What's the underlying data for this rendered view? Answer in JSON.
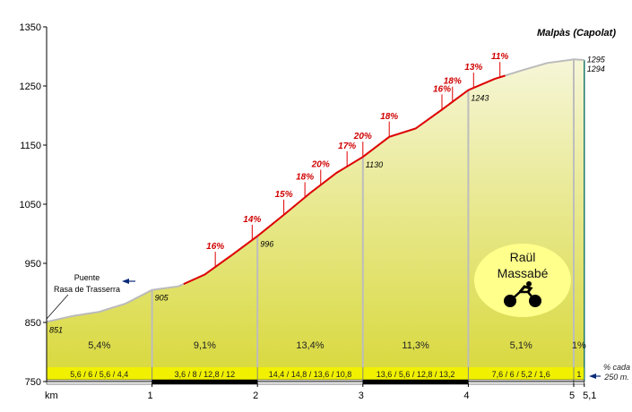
{
  "chart_data": {
    "type": "area",
    "title": "Malpàs (Capolat)",
    "xlabel": "km",
    "ylabel": "",
    "xlim": [
      0,
      5.1
    ],
    "ylim": [
      750,
      1350
    ],
    "y_ticks": [
      "750",
      "850",
      "950",
      "1050",
      "1150",
      "1250",
      "1350"
    ],
    "x_ticks": [
      {
        "x": 1,
        "label": "1"
      },
      {
        "x": 2,
        "label": "2"
      },
      {
        "x": 3,
        "label": "3"
      },
      {
        "x": 4,
        "label": "4"
      },
      {
        "x": 5,
        "label": "5"
      },
      {
        "x": 5.1,
        "label": "5,1"
      }
    ],
    "profile": [
      {
        "x": 0.0,
        "y": 851
      },
      {
        "x": 0.25,
        "y": 861
      },
      {
        "x": 0.5,
        "y": 868
      },
      {
        "x": 0.75,
        "y": 882
      },
      {
        "x": 1.0,
        "y": 905
      },
      {
        "x": 1.25,
        "y": 911
      },
      {
        "x": 1.5,
        "y": 931
      },
      {
        "x": 1.75,
        "y": 963
      },
      {
        "x": 2.0,
        "y": 996
      },
      {
        "x": 2.25,
        "y": 1032
      },
      {
        "x": 2.5,
        "y": 1069
      },
      {
        "x": 2.75,
        "y": 1103
      },
      {
        "x": 3.0,
        "y": 1130
      },
      {
        "x": 3.25,
        "y": 1164
      },
      {
        "x": 3.5,
        "y": 1178
      },
      {
        "x": 3.75,
        "y": 1210
      },
      {
        "x": 4.0,
        "y": 1243
      },
      {
        "x": 4.25,
        "y": 1262
      },
      {
        "x": 4.5,
        "y": 1276
      },
      {
        "x": 4.75,
        "y": 1289
      },
      {
        "x": 5.0,
        "y": 1295
      },
      {
        "x": 5.1,
        "y": 1294
      }
    ],
    "red_sections": [
      [
        1.3,
        4.35
      ]
    ],
    "altitude_labels": [
      {
        "x": 0.0,
        "y": 851,
        "label": "851"
      },
      {
        "x": 1.0,
        "y": 905,
        "label": "905"
      },
      {
        "x": 2.0,
        "y": 996,
        "label": "996"
      },
      {
        "x": 3.0,
        "y": 1130,
        "label": "1130"
      },
      {
        "x": 4.0,
        "y": 1243,
        "label": "1243"
      },
      {
        "x": 5.1,
        "y": 1295,
        "label": "1295"
      },
      {
        "x": 5.1,
        "y": 1294,
        "label": "1294"
      }
    ],
    "peak_labels": [
      {
        "x": 1.6,
        "label": "16%"
      },
      {
        "x": 1.95,
        "label": "14%"
      },
      {
        "x": 2.25,
        "label": "15%"
      },
      {
        "x": 2.45,
        "label": "18%"
      },
      {
        "x": 2.6,
        "label": "20%"
      },
      {
        "x": 2.85,
        "label": "17%"
      },
      {
        "x": 3.0,
        "label": "20%"
      },
      {
        "x": 3.25,
        "label": "18%"
      },
      {
        "x": 3.75,
        "label": "16%"
      },
      {
        "x": 3.85,
        "label": "18%"
      },
      {
        "x": 4.05,
        "label": "13%"
      },
      {
        "x": 4.3,
        "label": "11%"
      }
    ],
    "segment_gradients": [
      {
        "from": 0,
        "to": 1,
        "label": "5,4%"
      },
      {
        "from": 1,
        "to": 2,
        "label": "9,1%"
      },
      {
        "from": 2,
        "to": 3,
        "label": "13,4%"
      },
      {
        "from": 3,
        "to": 4,
        "label": "11,3%"
      },
      {
        "from": 4,
        "to": 5,
        "label": "5,1%"
      },
      {
        "from": 5,
        "to": 5.1,
        "label": "1%"
      }
    ],
    "gradient_bar": [
      {
        "from": 0,
        "to": 1,
        "label": "5,6  /  6  /  5,6  /  4,4"
      },
      {
        "from": 1,
        "to": 2,
        "label": "3,6  /  8  /  12,8  /  12"
      },
      {
        "from": 2,
        "to": 3,
        "label": "14,4  /  14,8  /  13,6  /  10,8"
      },
      {
        "from": 3,
        "to": 4,
        "label": "13,6  /  5,6  /  12,8  /  13,2"
      },
      {
        "from": 4,
        "to": 5,
        "label": "7,6  /  6  /  5,2  /  1,6"
      },
      {
        "from": 5,
        "to": 5.1,
        "label": "1"
      }
    ],
    "bar_note": [
      "% cada",
      "250 m."
    ],
    "landmark": {
      "lines": [
        "Puente",
        "Rasa de Trasserra"
      ]
    },
    "author": {
      "line1": "Raül",
      "line2": "Massabé",
      "icon": "cyclist-icon"
    },
    "grid": false,
    "colors": {
      "fill_top": "#f6f6d8",
      "fill_bottom": "#d8d83a",
      "profile_line": "#bbbbbb",
      "steep_line": "#e00000",
      "peak_text": "#d00000",
      "divider": "#bdbdbd",
      "band": "#f0f000",
      "badge": "#ffff8c",
      "right_edge": "#1f7a6e"
    }
  }
}
